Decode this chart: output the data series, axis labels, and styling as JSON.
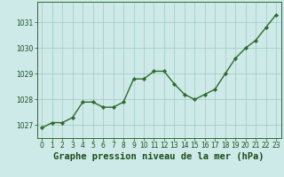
{
  "x": [
    0,
    1,
    2,
    3,
    4,
    5,
    6,
    7,
    8,
    9,
    10,
    11,
    12,
    13,
    14,
    15,
    16,
    17,
    18,
    19,
    20,
    21,
    22,
    23
  ],
  "y": [
    1026.9,
    1027.1,
    1027.1,
    1027.3,
    1027.9,
    1027.9,
    1027.7,
    1027.7,
    1027.9,
    1028.8,
    1028.8,
    1029.1,
    1029.1,
    1028.6,
    1028.2,
    1028.0,
    1028.2,
    1028.4,
    1029.0,
    1029.6,
    1030.0,
    1030.3,
    1030.8,
    1031.3
  ],
  "line_color": "#2d6a2d",
  "marker": "D",
  "marker_size": 2.2,
  "line_width": 1.0,
  "bg_color": "#ceeae8",
  "grid_color": "#a0c8c4",
  "title": "Graphe pression niveau de la mer (hPa)",
  "title_color": "#1a4d1a",
  "title_fontsize": 7.5,
  "ylim": [
    1026.5,
    1031.8
  ],
  "xlim": [
    -0.5,
    23.5
  ],
  "yticks": [
    1027,
    1028,
    1029,
    1030,
    1031
  ],
  "xticks": [
    0,
    1,
    2,
    3,
    4,
    5,
    6,
    7,
    8,
    9,
    10,
    11,
    12,
    13,
    14,
    15,
    16,
    17,
    18,
    19,
    20,
    21,
    22,
    23
  ],
  "tick_fontsize": 5.5,
  "tick_color": "#1a4d1a",
  "spine_color": "#2d6a2d"
}
